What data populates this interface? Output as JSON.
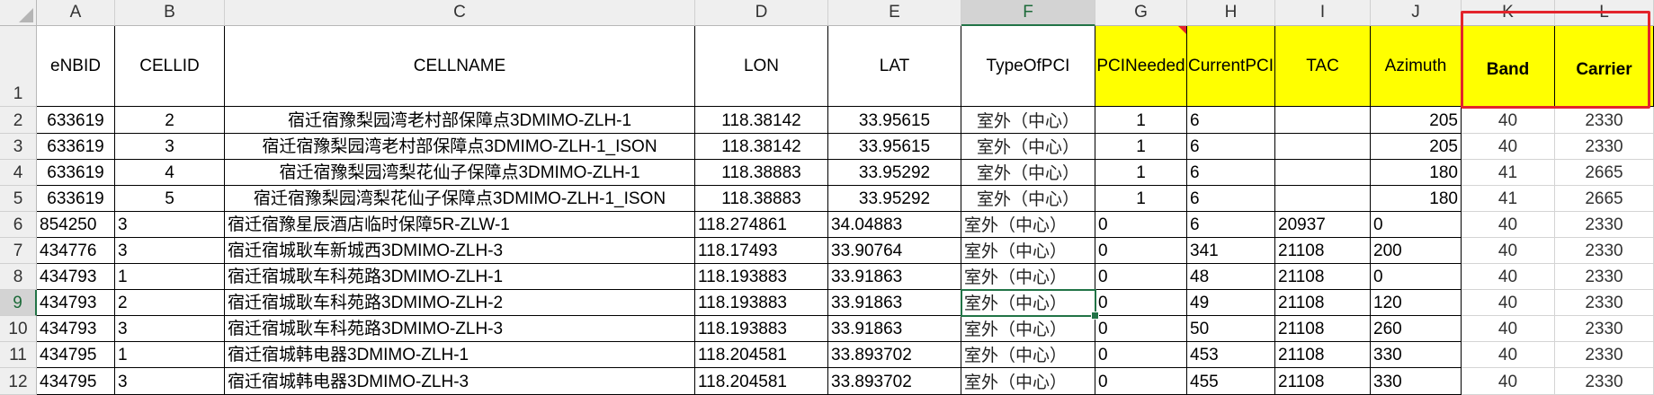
{
  "columns": [
    "A",
    "B",
    "C",
    "D",
    "E",
    "F",
    "G",
    "H",
    "I",
    "J",
    "K",
    "L"
  ],
  "selected_column": "F",
  "selected_row": "9",
  "header_row_number": "1",
  "header": [
    "eNBID",
    "CELLID",
    "CELLNAME",
    "LON",
    "LAT",
    "TypeOfPCI",
    "PCINeeded",
    "CurrentPCI",
    "TAC",
    "Azimuth",
    "Band",
    "Carrier"
  ],
  "rows": [
    {
      "n": "2",
      "v": [
        "633619",
        "2",
        "宿迁宿豫梨园湾老村部保障点3DMIMO-ZLH-1",
        "118.38142",
        "33.95615",
        "室外（中心）",
        "1",
        "6",
        "",
        "205",
        "40",
        "2330"
      ]
    },
    {
      "n": "3",
      "v": [
        "633619",
        "3",
        "宿迁宿豫梨园湾老村部保障点3DMIMO-ZLH-1_ISON",
        "118.38142",
        "33.95615",
        "室外（中心）",
        "1",
        "6",
        "",
        "205",
        "40",
        "2330"
      ]
    },
    {
      "n": "4",
      "v": [
        "633619",
        "4",
        "宿迁宿豫梨园湾梨花仙子保障点3DMIMO-ZLH-1",
        "118.38883",
        "33.95292",
        "室外（中心）",
        "1",
        "6",
        "",
        "180",
        "41",
        "2665"
      ]
    },
    {
      "n": "5",
      "v": [
        "633619",
        "5",
        "宿迁宿豫梨园湾梨花仙子保障点3DMIMO-ZLH-1_ISON",
        "118.38883",
        "33.95292",
        "室外（中心）",
        "1",
        "6",
        "",
        "180",
        "41",
        "2665"
      ]
    },
    {
      "n": "6",
      "v": [
        "854250",
        "3",
        "宿迁宿豫星辰酒店临时保障5R-ZLW-1",
        "118.274861",
        "34.04883",
        "室外（中心）",
        "0",
        "6",
        "20937",
        "0",
        "40",
        "2330"
      ]
    },
    {
      "n": "7",
      "v": [
        "434776",
        "3",
        "宿迁宿城耿车新城西3DMIMO-ZLH-3",
        "118.17493",
        "33.90764",
        "室外（中心）",
        "0",
        "341",
        "21108",
        "200",
        "40",
        "2330"
      ]
    },
    {
      "n": "8",
      "v": [
        "434793",
        "1",
        "宿迁宿城耿车科苑路3DMIMO-ZLH-1",
        "118.193883",
        "33.91863",
        "室外（中心）",
        "0",
        "48",
        "21108",
        "0",
        "40",
        "2330"
      ]
    },
    {
      "n": "9",
      "v": [
        "434793",
        "2",
        "宿迁宿城耿车科苑路3DMIMO-ZLH-2",
        "118.193883",
        "33.91863",
        "室外（中心）",
        "0",
        "49",
        "21108",
        "120",
        "40",
        "2330"
      ]
    },
    {
      "n": "10",
      "v": [
        "434793",
        "3",
        "宿迁宿城耿车科苑路3DMIMO-ZLH-3",
        "118.193883",
        "33.91863",
        "室外（中心）",
        "0",
        "50",
        "21108",
        "260",
        "40",
        "2330"
      ]
    },
    {
      "n": "11",
      "v": [
        "434795",
        "1",
        "宿迁宿城韩电器3DMIMO-ZLH-1",
        "118.204581",
        "33.893702",
        "室外（中心）",
        "0",
        "453",
        "21108",
        "330",
        "40",
        "2330"
      ]
    },
    {
      "n": "12",
      "v": [
        "434795",
        "3",
        "宿迁宿城韩电器3DMIMO-ZLH-3",
        "118.204581",
        "33.893702",
        "室外（中心）",
        "0",
        "455",
        "21108",
        "330",
        "40",
        "2330"
      ]
    }
  ],
  "colors": {
    "highlight_yellow": "#ffff00",
    "annotation_red": "#e3242b",
    "selection_green": "#217346"
  }
}
